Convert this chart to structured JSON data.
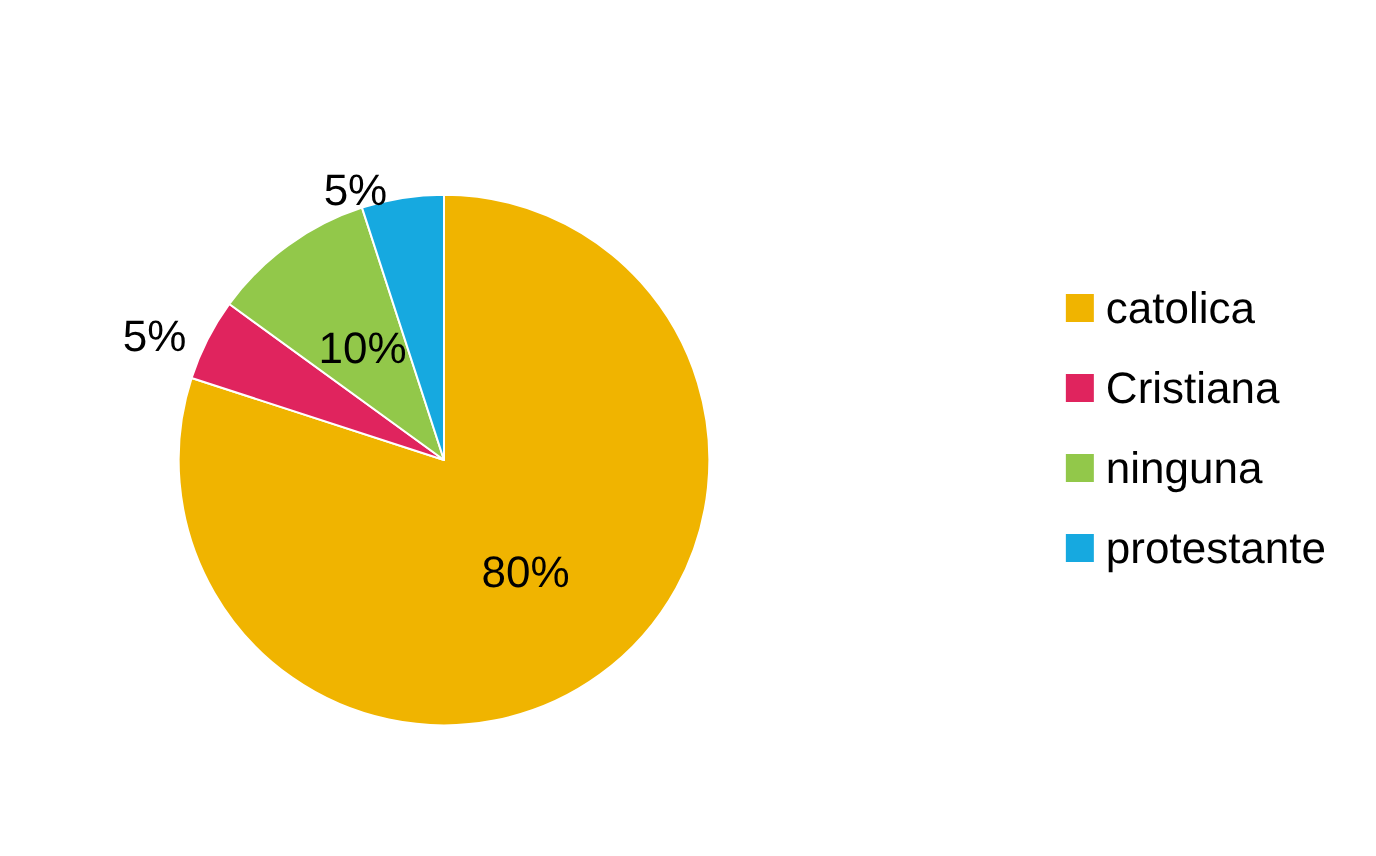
{
  "chart_data": {
    "type": "pie",
    "categories": [
      "catolica",
      "Cristiana",
      "ninguna",
      "protestante"
    ],
    "values": [
      80,
      5,
      10,
      5
    ],
    "colors": [
      "#f0b400",
      "#e0245e",
      "#92c84a",
      "#16a9e0"
    ],
    "value_labels": [
      "80%",
      "5%",
      "10%",
      "5%"
    ],
    "legend": "right"
  }
}
